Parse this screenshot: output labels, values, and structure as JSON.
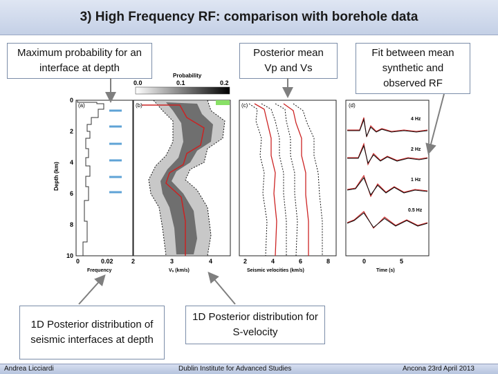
{
  "slide": {
    "title": "3) High Frequency RF: comparison with borehole data"
  },
  "callouts": {
    "interface_probability": "Maximum probability for an interface at depth",
    "posterior_mean": "Posterior mean Vp and Vs",
    "fit_rf": "Fit between mean synthetic and observed RF",
    "interface_distribution": "1D Posterior distribution of seismic interfaces at depth",
    "svelocity_distribution": "1D Posterior distribution for S-velocity"
  },
  "figure": {
    "colorbar": {
      "label": "Probability",
      "ticks": [
        "0.0",
        "0.1",
        "0.2"
      ]
    },
    "panels": {
      "a": "(a)",
      "b": "(b)",
      "c": "(c)",
      "d": "(d)"
    },
    "depth_axis": {
      "label": "Depth (km)",
      "ticks": [
        "0",
        "2",
        "4",
        "6",
        "8",
        "10"
      ]
    },
    "frequency_axis": {
      "label": "Frequency",
      "ticks": [
        "0",
        "0.02"
      ]
    },
    "vs_axis": {
      "label": "Vₛ (km/s)",
      "ticks": [
        "2",
        "3",
        "4"
      ]
    },
    "seismic_velocity_axis": {
      "label": "Seismic velocities (km/s)",
      "ticks": [
        "2",
        "4",
        "6",
        "8"
      ]
    },
    "time_axis": {
      "label": "Time (s)",
      "ticks": [
        "0",
        "5"
      ]
    },
    "rf_traces": [
      "4 Hz",
      "2 Hz",
      "1 Hz",
      "0.5 Hz"
    ]
  },
  "footer": {
    "author": "Andrea Licciardi",
    "institution": "Dublin Institute for Advanced Studies",
    "venue_date": "Ancona 23rd April 2013"
  }
}
